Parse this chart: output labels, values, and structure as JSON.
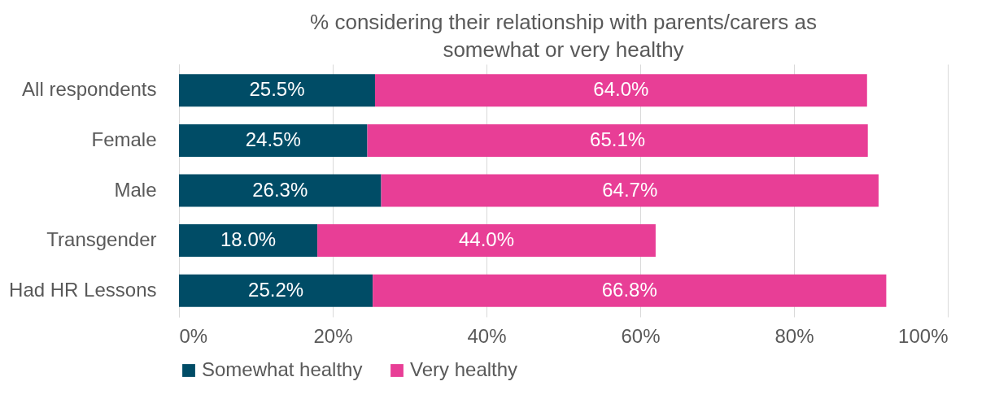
{
  "chart_data": {
    "type": "bar",
    "orientation": "horizontal",
    "stacked": true,
    "title": "% considering their relationship with parents/carers as somewhat or very healthy",
    "categories": [
      "All respondents",
      "Female",
      "Male",
      "Transgender",
      "Had HR Lessons"
    ],
    "series": [
      {
        "name": "Somewhat healthy",
        "color": "#004c66",
        "values": [
          25.5,
          24.5,
          26.3,
          18.0,
          25.2
        ]
      },
      {
        "name": "Very healthy",
        "color": "#e83e96",
        "values": [
          64.0,
          65.1,
          64.7,
          44.0,
          66.8
        ]
      }
    ],
    "value_labels": [
      [
        "25.5%",
        "24.5%",
        "26.3%",
        "18.0%",
        "25.2%"
      ],
      [
        "64.0%",
        "65.1%",
        "64.7%",
        "44.0%",
        "66.8%"
      ]
    ],
    "xlim": [
      0,
      100
    ],
    "xticks": [
      {
        "value": 0,
        "label": "0%"
      },
      {
        "value": 20,
        "label": "20%"
      },
      {
        "value": 40,
        "label": "40%"
      },
      {
        "value": 60,
        "label": "60%"
      },
      {
        "value": 80,
        "label": "80%"
      },
      {
        "value": 100,
        "label": "100%"
      }
    ],
    "grid": "x",
    "legend": "bottom"
  }
}
